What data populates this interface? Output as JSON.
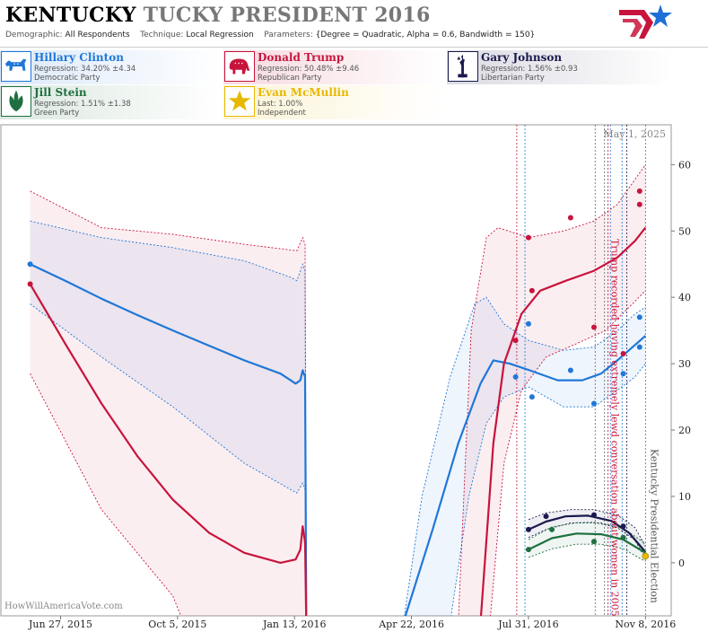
{
  "header": {
    "title_state": "KENTUCKY",
    "title_rest": "TUCKY PRESIDENT 2016",
    "demographic_label": "Demographic:",
    "demographic_value": "All Respondents",
    "technique_label": "Technique:",
    "technique_value": "Local Regression",
    "parameters_label": "Parameters:",
    "parameters_value": "{Degree = Quadratic, Alpha = 0.6, Bandwidth = 150}"
  },
  "candidates": [
    {
      "name": "Hillary Clinton",
      "stat": "Regression: 34.20% ±4.34",
      "party": "Democratic Party",
      "color": "#1f77d8",
      "icon": "donkey-icon"
    },
    {
      "name": "Donald Trump",
      "stat": "Regression: 50.48% ±9.46",
      "party": "Republican Party",
      "color": "#c8143c",
      "icon": "elephant-icon"
    },
    {
      "name": "Gary Johnson",
      "stat": "Regression: 1.56% ±0.93",
      "party": "Libertarian Party",
      "color": "#1a1a4e",
      "icon": "liberty-statue-icon"
    },
    {
      "name": "Jill Stein",
      "stat": "Regression: 1.51% ±1.38",
      "party": "Green Party",
      "color": "#1e7040",
      "icon": "leaf-icon"
    },
    {
      "name": "Evan McMullin",
      "stat": "Last: 1.00%",
      "party": "Independent",
      "color": "#e8b800",
      "icon": "star-icon"
    }
  ],
  "chart_data": {
    "type": "line",
    "title": "KENTUCKY TUCKY PRESIDENT 2016",
    "x_tick_labels": [
      "Jun 27, 2015",
      "Oct 5, 2015",
      "Jan 13, 2016",
      "Apr 22, 2016",
      "Jul 31, 2016",
      "Nov 8, 2016"
    ],
    "x_range": [
      "2015-05-07",
      "2016-11-30"
    ],
    "ylim": [
      -8,
      66
    ],
    "y_ticks": [
      0,
      10,
      20,
      30,
      40,
      50,
      60
    ],
    "grid": false,
    "date_label": "May 1, 2025",
    "watermark": "HowWillAmericaVote.com",
    "annotations": [
      {
        "text": "Trump recorded having extremely lewd conversation about women in 2005",
        "date": "2016-10-07",
        "color": "#c8143c"
      },
      {
        "text": "Kentucky Presidential Election",
        "date": "2016-11-08",
        "color": "#555555"
      }
    ],
    "event_lines": [
      {
        "date": "2016-07-21",
        "color": "#c8143c"
      },
      {
        "date": "2016-07-28",
        "color": "#1f77d8"
      },
      {
        "date": "2016-09-26",
        "color": "#666666"
      },
      {
        "date": "2016-10-04",
        "color": "#666666"
      },
      {
        "date": "2016-10-07",
        "color": "#c8143c"
      },
      {
        "date": "2016-10-09",
        "color": "#1f77d8"
      },
      {
        "date": "2016-10-19",
        "color": "#1f77d8"
      },
      {
        "date": "2016-10-23",
        "color": "#1a1a4e"
      },
      {
        "date": "2016-11-08",
        "color": "#666666"
      }
    ],
    "series": [
      {
        "name": "Hillary Clinton",
        "color": "#1f77d8",
        "points": [
          [
            "2015-06-01",
            45
          ],
          [
            "2016-07-20",
            28
          ],
          [
            "2016-07-31",
            36
          ],
          [
            "2016-08-03",
            25
          ],
          [
            "2016-09-05",
            29
          ],
          [
            "2016-09-25",
            24
          ],
          [
            "2016-10-20",
            28.5
          ],
          [
            "2016-11-03",
            37
          ],
          [
            "2016-11-03",
            32.5
          ]
        ],
        "fit": [
          [
            "2015-06-01",
            45
          ],
          [
            "2015-07-01",
            42.5
          ],
          [
            "2015-08-01",
            39.8
          ],
          [
            "2015-09-01",
            37.3
          ],
          [
            "2015-10-01",
            35
          ],
          [
            "2015-11-01",
            32.7
          ],
          [
            "2015-12-01",
            30.5
          ],
          [
            "2016-01-01",
            28.5
          ],
          [
            "2016-01-14",
            27
          ],
          [
            "2016-01-18",
            27.5
          ],
          [
            "2016-01-20",
            29
          ],
          [
            "2016-01-22",
            28
          ],
          [
            "2016-01-23",
            -10
          ],
          [
            "2016-04-15",
            -10
          ],
          [
            "2016-05-10",
            5
          ],
          [
            "2016-06-01",
            18
          ],
          [
            "2016-06-20",
            27
          ],
          [
            "2016-07-01",
            30.5
          ],
          [
            "2016-07-15",
            30
          ],
          [
            "2016-08-01",
            29
          ],
          [
            "2016-08-25",
            27.5
          ],
          [
            "2016-09-15",
            27.5
          ],
          [
            "2016-10-01",
            28.5
          ],
          [
            "2016-10-15",
            30.5
          ],
          [
            "2016-10-28",
            32.5
          ],
          [
            "2016-11-08",
            34.2
          ]
        ],
        "upper": [
          [
            "2015-06-01",
            51.5
          ],
          [
            "2015-08-01",
            49
          ],
          [
            "2015-10-01",
            47.5
          ],
          [
            "2015-12-01",
            45.5
          ],
          [
            "2016-01-10",
            43
          ],
          [
            "2016-01-15",
            42.5
          ],
          [
            "2016-01-20",
            45
          ],
          [
            "2016-01-22",
            44
          ],
          [
            "2016-01-23",
            -10
          ],
          [
            "2016-04-15",
            -10
          ],
          [
            "2016-05-01",
            10
          ],
          [
            "2016-05-25",
            28
          ],
          [
            "2016-06-15",
            39
          ],
          [
            "2016-06-25",
            40
          ],
          [
            "2016-07-10",
            36
          ],
          [
            "2016-07-31",
            33.5
          ],
          [
            "2016-08-30",
            32
          ],
          [
            "2016-09-25",
            32.5
          ],
          [
            "2016-10-15",
            35
          ],
          [
            "2016-10-30",
            37.5
          ],
          [
            "2016-11-08",
            38.5
          ]
        ],
        "lower": [
          [
            "2015-06-01",
            39
          ],
          [
            "2015-08-01",
            31
          ],
          [
            "2015-10-01",
            23.5
          ],
          [
            "2015-12-01",
            15
          ],
          [
            "2016-01-10",
            11
          ],
          [
            "2016-01-15",
            10.5
          ],
          [
            "2016-01-20",
            12
          ],
          [
            "2016-01-22",
            11
          ],
          [
            "2016-01-23",
            -10
          ],
          [
            "2016-05-25",
            -10
          ],
          [
            "2016-06-10",
            10
          ],
          [
            "2016-06-25",
            21
          ],
          [
            "2016-07-10",
            25
          ],
          [
            "2016-07-31",
            26.5
          ],
          [
            "2016-08-30",
            23.5
          ],
          [
            "2016-09-25",
            23.5
          ],
          [
            "2016-10-15",
            26
          ],
          [
            "2016-10-30",
            28
          ],
          [
            "2016-11-08",
            30
          ]
        ]
      },
      {
        "name": "Donald Trump",
        "color": "#c8143c",
        "points": [
          [
            "2015-06-01",
            42
          ],
          [
            "2016-07-20",
            33.5
          ],
          [
            "2016-07-31",
            49
          ],
          [
            "2016-08-03",
            41
          ],
          [
            "2016-09-05",
            52
          ],
          [
            "2016-09-25",
            35.5
          ],
          [
            "2016-10-20",
            31.5
          ],
          [
            "2016-11-03",
            56
          ],
          [
            "2016-11-03",
            54
          ]
        ],
        "fit": [
          [
            "2015-06-01",
            42
          ],
          [
            "2015-07-01",
            33
          ],
          [
            "2015-08-01",
            24
          ],
          [
            "2015-09-01",
            16
          ],
          [
            "2015-10-01",
            9.5
          ],
          [
            "2015-11-01",
            4.5
          ],
          [
            "2015-12-01",
            1.5
          ],
          [
            "2016-01-01",
            0
          ],
          [
            "2016-01-14",
            0.5
          ],
          [
            "2016-01-18",
            2
          ],
          [
            "2016-01-20",
            5.5
          ],
          [
            "2016-01-22",
            3
          ],
          [
            "2016-01-23",
            -10
          ],
          [
            "2016-06-20",
            -10
          ],
          [
            "2016-07-01",
            18
          ],
          [
            "2016-07-10",
            30
          ],
          [
            "2016-07-25",
            37.5
          ],
          [
            "2016-08-10",
            41
          ],
          [
            "2016-09-01",
            42.5
          ],
          [
            "2016-09-25",
            44
          ],
          [
            "2016-10-15",
            46
          ],
          [
            "2016-10-30",
            48.5
          ],
          [
            "2016-11-08",
            50.5
          ]
        ],
        "upper": [
          [
            "2015-06-01",
            56
          ],
          [
            "2015-08-01",
            50.5
          ],
          [
            "2015-10-01",
            49.5
          ],
          [
            "2015-12-01",
            48
          ],
          [
            "2016-01-15",
            47
          ],
          [
            "2016-01-20",
            49
          ],
          [
            "2016-01-22",
            48
          ],
          [
            "2016-01-23",
            -10
          ],
          [
            "2016-06-01",
            -10
          ],
          [
            "2016-06-12",
            35
          ],
          [
            "2016-06-25",
            49
          ],
          [
            "2016-07-05",
            50.5
          ],
          [
            "2016-07-31",
            49
          ],
          [
            "2016-08-30",
            50
          ],
          [
            "2016-09-25",
            51.5
          ],
          [
            "2016-10-15",
            54
          ],
          [
            "2016-11-08",
            60
          ]
        ],
        "lower": [
          [
            "2015-06-01",
            28.5
          ],
          [
            "2015-08-01",
            8
          ],
          [
            "2015-10-01",
            -5
          ],
          [
            "2015-10-10",
            -10
          ],
          [
            "2016-01-23",
            -10
          ],
          [
            "2016-06-28",
            -10
          ],
          [
            "2016-07-10",
            15
          ],
          [
            "2016-07-25",
            26
          ],
          [
            "2016-08-15",
            31
          ],
          [
            "2016-09-10",
            33
          ],
          [
            "2016-10-05",
            35
          ],
          [
            "2016-10-25",
            38.5
          ],
          [
            "2016-11-08",
            41
          ]
        ]
      },
      {
        "name": "Gary Johnson",
        "color": "#1a1a4e",
        "points": [
          [
            "2016-07-31",
            5
          ],
          [
            "2016-08-15",
            7
          ],
          [
            "2016-09-25",
            7.2
          ],
          [
            "2016-10-20",
            5.5
          ]
        ],
        "fit": [
          [
            "2016-07-31",
            5
          ],
          [
            "2016-08-15",
            6.2
          ],
          [
            "2016-09-01",
            7
          ],
          [
            "2016-09-20",
            7.1
          ],
          [
            "2016-10-10",
            6.3
          ],
          [
            "2016-10-25",
            4.5
          ],
          [
            "2016-11-08",
            1.6
          ]
        ],
        "upper": [
          [
            "2016-07-31",
            6.5
          ],
          [
            "2016-08-15",
            7.5
          ],
          [
            "2016-09-05",
            8
          ],
          [
            "2016-09-25",
            8
          ],
          [
            "2016-10-15",
            7.2
          ],
          [
            "2016-10-30",
            5.3
          ],
          [
            "2016-11-08",
            2.5
          ]
        ],
        "lower": [
          [
            "2016-07-31",
            3.8
          ],
          [
            "2016-08-15",
            5
          ],
          [
            "2016-09-05",
            6
          ],
          [
            "2016-09-25",
            6.1
          ],
          [
            "2016-10-15",
            5.3
          ],
          [
            "2016-10-30",
            3.4
          ],
          [
            "2016-11-08",
            0.6
          ]
        ]
      },
      {
        "name": "Jill Stein",
        "color": "#1e7040",
        "points": [
          [
            "2016-07-31",
            2
          ],
          [
            "2016-08-20",
            5
          ],
          [
            "2016-09-25",
            3.2
          ],
          [
            "2016-10-20",
            3.8
          ]
        ],
        "fit": [
          [
            "2016-07-31",
            2
          ],
          [
            "2016-08-20",
            3.7
          ],
          [
            "2016-09-10",
            4.4
          ],
          [
            "2016-10-01",
            4.3
          ],
          [
            "2016-10-20",
            3.5
          ],
          [
            "2016-11-08",
            1.5
          ]
        ],
        "upper": [
          [
            "2016-07-31",
            3.5
          ],
          [
            "2016-08-20",
            5.4
          ],
          [
            "2016-09-10",
            6
          ],
          [
            "2016-10-01",
            6
          ],
          [
            "2016-10-20",
            5.2
          ],
          [
            "2016-11-08",
            2.9
          ]
        ],
        "lower": [
          [
            "2016-07-31",
            0.8
          ],
          [
            "2016-08-20",
            2.1
          ],
          [
            "2016-09-10",
            2.8
          ],
          [
            "2016-10-01",
            2.8
          ],
          [
            "2016-10-20",
            2.1
          ],
          [
            "2016-11-08",
            0.2
          ]
        ]
      },
      {
        "name": "Evan McMullin",
        "color": "#e8b800",
        "points": [
          [
            "2016-11-08",
            1
          ]
        ],
        "fit": [],
        "upper": [],
        "lower": []
      }
    ]
  }
}
